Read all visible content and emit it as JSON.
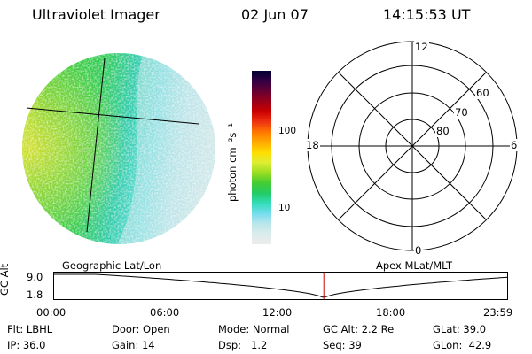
{
  "header": {
    "title": "Ultraviolet Imager",
    "date": "02 Jun 07",
    "time": "14:15:53 UT"
  },
  "colorbar": {
    "unit_label": "photon cm⁻²s⁻¹",
    "ticks": [
      "100",
      "10"
    ],
    "colors": [
      "#000033",
      "#330044",
      "#660033",
      "#99001a",
      "#cc0000",
      "#ee3311",
      "#ff7700",
      "#ffaa00",
      "#ffdd00",
      "#ddee33",
      "#99dd22",
      "#44cc33",
      "#22cc66",
      "#33ddbb",
      "#77ddee",
      "#bbe6ea",
      "#dcecec",
      "#ececec"
    ]
  },
  "polar_plot": {
    "top_label": "12",
    "bottom_label": "0",
    "left_label": "18",
    "right_label": "6",
    "ring_labels": [
      "60",
      "70",
      "80"
    ]
  },
  "timeline": {
    "ylabel": "GC Alt",
    "y_ticks": [
      "9.0",
      "1.8"
    ],
    "left_caption": "Geographic Lat/Lon",
    "right_caption": "Apex MLat/MLT",
    "x_ticks": [
      "00:00",
      "06:00",
      "12:00",
      "18:00",
      "23:59"
    ],
    "current_time_hours": 14.26,
    "marker_color": "#cc0000"
  },
  "info": {
    "row1": [
      {
        "label": "Flt:",
        "value": "LBHL"
      },
      {
        "label": "Door:",
        "value": "Open"
      },
      {
        "label": "Mode:",
        "value": "Normal"
      },
      {
        "label": "GC Alt:",
        "value": "2.2 Re"
      },
      {
        "label": "GLat:",
        "value": "39.0"
      }
    ],
    "row2": [
      {
        "label": "IP:",
        "value": "36.0"
      },
      {
        "label": "Gain:",
        "value": "14"
      },
      {
        "label": "Dsp:",
        "value": "1.2"
      },
      {
        "label": "Seq:",
        "value": "39"
      },
      {
        "label": "GLon:",
        "value": "42.9"
      }
    ]
  }
}
